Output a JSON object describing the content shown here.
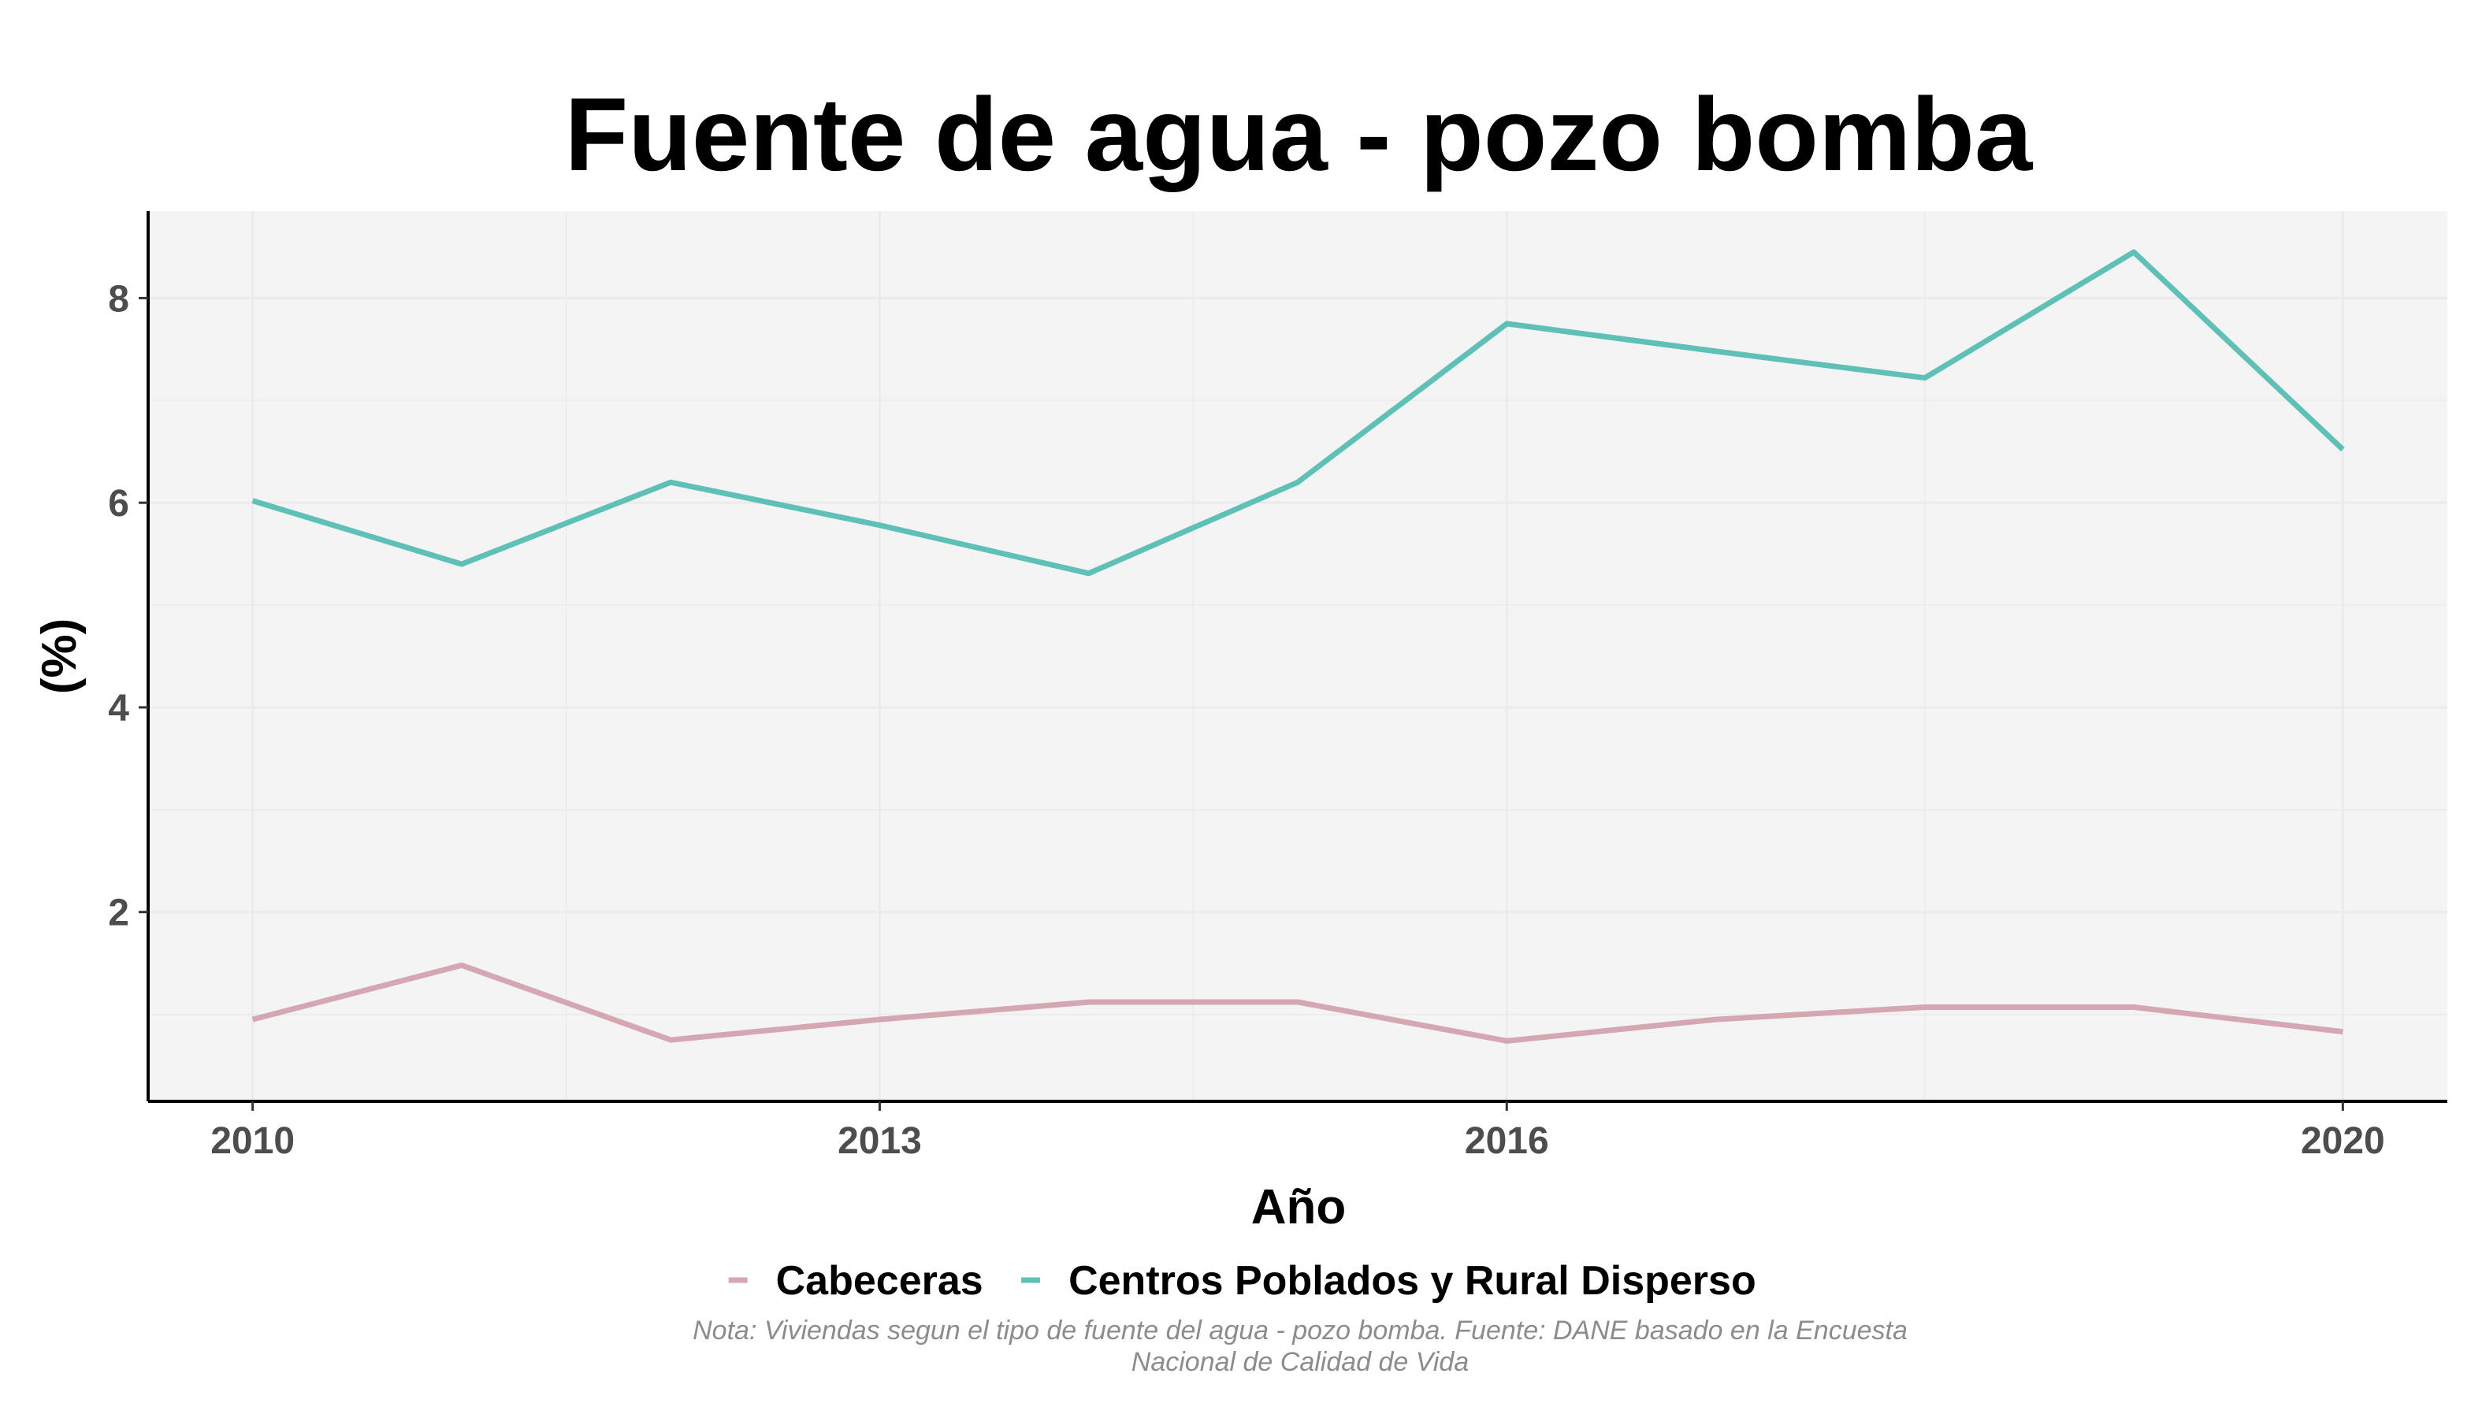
{
  "chart_data": {
    "type": "line",
    "title": "Fuente de agua - pozo bomba",
    "xlabel": "Año",
    "ylabel": "(%)",
    "x": [
      2010,
      2011,
      2012,
      2013,
      2014,
      2015,
      2016,
      2017,
      2018,
      2019,
      2020
    ],
    "x_ticks": [
      "2010",
      "2013",
      "2016",
      "2020"
    ],
    "y_ticks": [
      "2",
      "4",
      "6",
      "8"
    ],
    "xlim": [
      2009.5,
      2020.5
    ],
    "ylim": [
      0.15,
      8.85
    ],
    "grid": true,
    "legend_position": "bottom",
    "series": [
      {
        "name": "Cabeceras",
        "color": "#d4a7b2",
        "values": [
          0.95,
          1.48,
          0.75,
          0.95,
          1.12,
          1.12,
          0.74,
          0.95,
          1.07,
          1.07,
          0.83
        ]
      },
      {
        "name": "Centros Poblados y Rural Disperso",
        "color": "#5fc0b8",
        "values": [
          6.02,
          5.4,
          6.2,
          5.78,
          5.31,
          6.2,
          7.75,
          7.48,
          7.22,
          8.45,
          6.52
        ]
      }
    ],
    "caption_lines": [
      "Nota: Viviendas segun el tipo de fuente del agua - pozo bomba. Fuente: DANE basado en la Encuesta",
      "Nacional de Calidad de Vida"
    ],
    "colors": {
      "panel_background": "#f4f4f4",
      "grid": "#ebebeb",
      "axis_line": "#000000"
    }
  }
}
